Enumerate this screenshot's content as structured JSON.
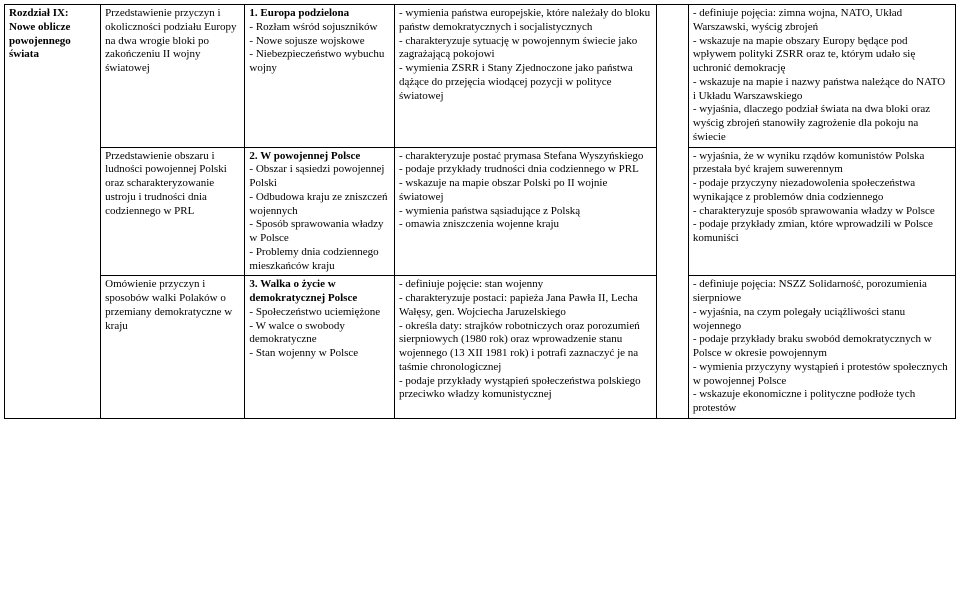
{
  "col1": {
    "header": "Rozdział IX:\nNowe oblicze powojennego świata"
  },
  "rows": [
    {
      "c2": "Przedstawienie przyczyn i okoliczności podziału Europy na dwa wrogie bloki po zakończeniu II wojny światowej",
      "c3_title": "1. Europa podzielona",
      "c3": "- Rozłam wśród sojuszników\n- Nowe sojusze wojskowe\n- Niebezpieczeństwo wybuchu wojny",
      "c4": "- wymienia państwa europejskie, które należały do bloku państw demokratycznych i socjalistycznych\n- charakteryzuje sytuację w powojennym świecie jako zagrażającą pokojowi\n- wymienia ZSRR i Stany Zjednoczone jako państwa dążące do przejęcia wiodącej pozycji w polityce światowej",
      "c6": "- definiuje pojęcia: zimna wojna, NATO, Układ Warszawski, wyścig zbrojeń\n- wskazuje na mapie obszary Europy będące pod wpływem polityki ZSRR oraz te, którym udało się uchronić demokrację\n- wskazuje na mapie i nazwy państwa należące do NATO i Układu Warszawskiego\n- wyjaśnia, dlaczego podział świata na dwa bloki oraz wyścig zbrojeń stanowiły zagrożenie dla pokoju na świecie"
    },
    {
      "c2": "Przedstawienie obszaru i ludności powojennej Polski oraz scharakteryzowanie ustroju i trudności dnia codziennego w PRL",
      "c3_title": "2. W powojennej Polsce",
      "c3": "- Obszar i sąsiedzi powojennej Polski\n- Odbudowa kraju ze zniszczeń wojennych\n- Sposób sprawowania władzy w Polsce\n- Problemy dnia codziennego mieszkańców kraju",
      "c4": "- charakteryzuje postać prymasa Stefana Wyszyńskiego\n- podaje przykłady trudności dnia codziennego w PRL\n- wskazuje na mapie obszar Polski po II wojnie światowej\n- wymienia państwa sąsiadujące z Polską\n- omawia zniszczenia wojenne kraju",
      "c6": "- wyjaśnia, że w wyniku rządów komunistów Polska przestała być krajem suwerennym\n- podaje przyczyny niezadowolenia społeczeństwa wynikające z problemów dnia codziennego\n- charakteryzuje sposób sprawowania władzy w Polsce\n- podaje przykłady zmian, które wprowadzili w Polsce komuniści"
    },
    {
      "c2": "Omówienie przyczyn i sposobów walki Polaków o przemiany demokratyczne w kraju",
      "c3_title": "3. Walka o życie w demokratycznej Polsce",
      "c3": "- Społeczeństwo uciemiężone\n- W walce o swobody demokratyczne\n- Stan wojenny w Polsce",
      "c4": "- definiuje pojęcie: stan wojenny\n- charakteryzuje postaci: papieża Jana Pawła II, Lecha Wałęsy, gen. Wojciecha Jaruzelskiego\n- określa daty: strajków robotniczych oraz porozumień sierpniowych (1980 rok) oraz wprowadzenie stanu wojennego (13 XII 1981 rok) i potrafi zaznaczyć je na taśmie chronologicznej\n- podaje przykłady wystąpień społeczeństwa polskiego przeciwko władzy komunistycznej",
      "c6": "- definiuje pojęcia: NSZZ Solidarność, porozumienia sierpniowe\n- wyjaśnia, na czym polegały uciążliwości stanu wojennego\n- podaje przykłady braku swobód demokratycznych w Polsce w okresie powojennym\n- wymienia przyczyny wystąpień i protestów społecznych w powojennej Polsce\n- wskazuje ekonomiczne i polityczne podłoże tych protestów"
    }
  ]
}
